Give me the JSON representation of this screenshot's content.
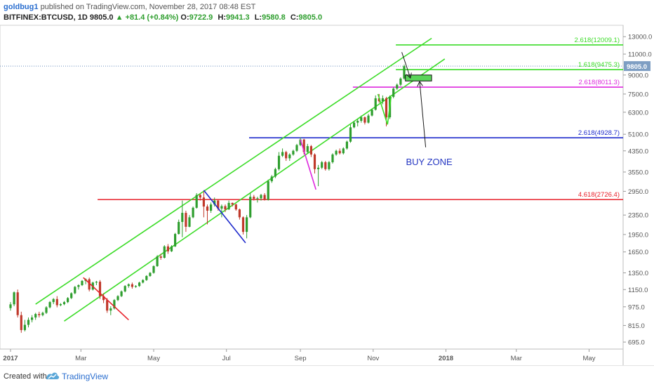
{
  "header": {
    "author": "goldbug1",
    "published": "published on TradingView.com, November 28, 2017 08:48 EST",
    "symbol": "BITFINEX:BTCUSD, 1D",
    "last": "9805.0",
    "change": "+81.4 (+0.84%)",
    "open_label": "O:",
    "open": "9722.9",
    "high_label": "H:",
    "high": "9941.3",
    "low_label": "L:",
    "low": "9580.8",
    "close_label": "C:",
    "close": "9805.0"
  },
  "footer": {
    "created": "Created with",
    "brand": "TradingView"
  },
  "colors": {
    "up": "#2e9e2e",
    "down": "#c0392b",
    "channel": "#3cdc28",
    "red_level": "#e8202a",
    "blue_level": "#1f2bcc",
    "magenta_level": "#dd28dd",
    "green_level": "#3cdc28",
    "buy_box": "#5ad45a",
    "annotation": "#1a1a1a",
    "buy_text": "#2436c2"
  },
  "chart_data": {
    "type": "candlestick",
    "y_scale": "log",
    "ylim": [
      650,
      14500
    ],
    "y_ticks": [
      "13000.0",
      "11000.0",
      "9000.0",
      "7500.0",
      "6300.0",
      "5100.0",
      "4350.0",
      "3550.0",
      "2950.0",
      "2350.0",
      "1950.0",
      "1650.0",
      "1350.0",
      "1150.0",
      "975.0",
      "815.0",
      "695.0"
    ],
    "x_ticks": [
      "2017",
      "Mar",
      "May",
      "Jul",
      "Sep",
      "Nov",
      "2018",
      "Mar",
      "May"
    ],
    "price_tag": "9805.0",
    "levels": [
      {
        "label": "2.618(12009.1)",
        "value": 12009.1,
        "color": "green_level",
        "x_start": "2017-11-20"
      },
      {
        "label": "1.618(9475.3)",
        "value": 9475.3,
        "color": "green_level",
        "x_start": "2017-11-20"
      },
      {
        "label": "2.618(8011.3)",
        "value": 8011.3,
        "color": "magenta_level",
        "x_start": "2017-10-15"
      },
      {
        "label": "2.618(4928.7)",
        "value": 4928.7,
        "color": "blue_level",
        "x_start": "2017-07-20"
      },
      {
        "label": "4.618(2726.4)",
        "value": 2726.4,
        "color": "red_level",
        "x_start": "2017-03-15"
      }
    ],
    "buy_zone": {
      "label": "BUY ZONE",
      "date_from": "2017-11-28",
      "date_to": "2017-12-20",
      "y_low": 8500,
      "y_high": 9000
    },
    "channel_lines": [
      {
        "from": [
          "2017-02-15",
          850
        ],
        "to": [
          "2017-12-31",
          10500
        ]
      },
      {
        "from": [
          "2017-01-22",
          1000
        ],
        "to": [
          "2017-12-20",
          12800
        ]
      }
    ],
    "ohlc": [
      [
        "2017-01-01",
        963,
        1020,
        940,
        998
      ],
      [
        "2017-01-04",
        998,
        1130,
        980,
        1120
      ],
      [
        "2017-01-07",
        1120,
        1150,
        880,
        900
      ],
      [
        "2017-01-10",
        900,
        930,
        760,
        780
      ],
      [
        "2017-01-13",
        780,
        860,
        770,
        820
      ],
      [
        "2017-01-16",
        820,
        880,
        800,
        860
      ],
      [
        "2017-01-19",
        860,
        900,
        840,
        880
      ],
      [
        "2017-01-22",
        880,
        920,
        860,
        910
      ],
      [
        "2017-01-25",
        910,
        930,
        880,
        900
      ],
      [
        "2017-01-28",
        900,
        930,
        890,
        920
      ],
      [
        "2017-01-31",
        920,
        980,
        910,
        970
      ],
      [
        "2017-02-03",
        970,
        1030,
        960,
        1020
      ],
      [
        "2017-02-06",
        1020,
        1060,
        1000,
        1050
      ],
      [
        "2017-02-09",
        1050,
        1080,
        970,
        990
      ],
      [
        "2017-02-12",
        990,
        1010,
        980,
        1000
      ],
      [
        "2017-02-15",
        1000,
        1030,
        990,
        1020
      ],
      [
        "2017-02-18",
        1020,
        1070,
        1010,
        1060
      ],
      [
        "2017-02-21",
        1060,
        1120,
        1050,
        1110
      ],
      [
        "2017-02-24",
        1110,
        1190,
        1100,
        1180
      ],
      [
        "2017-02-27",
        1180,
        1210,
        1150,
        1200
      ],
      [
        "2017-03-02",
        1200,
        1260,
        1190,
        1250
      ],
      [
        "2017-03-05",
        1250,
        1280,
        1210,
        1270
      ],
      [
        "2017-03-08",
        1270,
        1290,
        1130,
        1150
      ],
      [
        "2017-03-11",
        1150,
        1240,
        1140,
        1230
      ],
      [
        "2017-03-14",
        1230,
        1250,
        1200,
        1240
      ],
      [
        "2017-03-17",
        1240,
        1260,
        1050,
        1080
      ],
      [
        "2017-03-20",
        1080,
        1110,
        1010,
        1040
      ],
      [
        "2017-03-23",
        1040,
        1060,
        920,
        940
      ],
      [
        "2017-03-26",
        940,
        980,
        900,
        960
      ],
      [
        "2017-03-29",
        960,
        1050,
        950,
        1040
      ],
      [
        "2017-04-01",
        1040,
        1090,
        1030,
        1080
      ],
      [
        "2017-04-04",
        1080,
        1140,
        1070,
        1130
      ],
      [
        "2017-04-07",
        1130,
        1200,
        1120,
        1190
      ],
      [
        "2017-04-10",
        1190,
        1220,
        1170,
        1210
      ],
      [
        "2017-04-13",
        1210,
        1230,
        1160,
        1180
      ],
      [
        "2017-04-16",
        1180,
        1200,
        1170,
        1190
      ],
      [
        "2017-04-19",
        1190,
        1240,
        1180,
        1230
      ],
      [
        "2017-04-22",
        1230,
        1270,
        1220,
        1260
      ],
      [
        "2017-04-25",
        1260,
        1320,
        1250,
        1310
      ],
      [
        "2017-04-28",
        1310,
        1360,
        1300,
        1350
      ],
      [
        "2017-05-01",
        1350,
        1450,
        1340,
        1440
      ],
      [
        "2017-05-04",
        1440,
        1600,
        1430,
        1580
      ],
      [
        "2017-05-07",
        1580,
        1620,
        1530,
        1560
      ],
      [
        "2017-05-10",
        1560,
        1760,
        1550,
        1740
      ],
      [
        "2017-05-13",
        1740,
        1780,
        1620,
        1660
      ],
      [
        "2017-05-16",
        1660,
        1760,
        1650,
        1740
      ],
      [
        "2017-05-19",
        1740,
        1980,
        1730,
        1960
      ],
      [
        "2017-05-22",
        1960,
        2250,
        1950,
        2200
      ],
      [
        "2017-05-25",
        2200,
        2700,
        1900,
        2400
      ],
      [
        "2017-05-28",
        2400,
        2450,
        2000,
        2100
      ],
      [
        "2017-05-31",
        2100,
        2350,
        2090,
        2300
      ],
      [
        "2017-06-03",
        2300,
        2550,
        2280,
        2520
      ],
      [
        "2017-06-06",
        2520,
        2900,
        2500,
        2850
      ],
      [
        "2017-06-09",
        2850,
        2880,
        2700,
        2780
      ],
      [
        "2017-06-12",
        2780,
        2950,
        2300,
        2550
      ],
      [
        "2017-06-15",
        2550,
        2600,
        2150,
        2450
      ],
      [
        "2017-06-18",
        2450,
        2650,
        2400,
        2600
      ],
      [
        "2017-06-21",
        2600,
        2780,
        2550,
        2700
      ],
      [
        "2017-06-24",
        2700,
        2720,
        2450,
        2500
      ],
      [
        "2017-06-27",
        2500,
        2600,
        2300,
        2560
      ],
      [
        "2017-06-30",
        2560,
        2600,
        2420,
        2480
      ],
      [
        "2017-07-03",
        2480,
        2700,
        2470,
        2640
      ],
      [
        "2017-07-06",
        2640,
        2650,
        2550,
        2600
      ],
      [
        "2017-07-09",
        2600,
        2620,
        2450,
        2480
      ],
      [
        "2017-07-12",
        2480,
        2500,
        2250,
        2300
      ],
      [
        "2017-07-15",
        2300,
        2320,
        1950,
        2000
      ],
      [
        "2017-07-18",
        2000,
        2350,
        1880,
        2300
      ],
      [
        "2017-07-21",
        2300,
        2900,
        2280,
        2800
      ],
      [
        "2017-07-24",
        2800,
        2850,
        2700,
        2750
      ],
      [
        "2017-07-27",
        2750,
        2800,
        2650,
        2760
      ],
      [
        "2017-07-30",
        2760,
        2880,
        2700,
        2850
      ],
      [
        "2017-08-02",
        2850,
        2900,
        2700,
        2720
      ],
      [
        "2017-08-05",
        2720,
        3300,
        2700,
        3250
      ],
      [
        "2017-08-08",
        3250,
        3450,
        3200,
        3400
      ],
      [
        "2017-08-11",
        3400,
        3700,
        3350,
        3650
      ],
      [
        "2017-08-14",
        3650,
        4300,
        3600,
        4150
      ],
      [
        "2017-08-17",
        4150,
        4450,
        4100,
        4300
      ],
      [
        "2017-08-20",
        4300,
        4350,
        3950,
        4050
      ],
      [
        "2017-08-23",
        4050,
        4250,
        3950,
        4200
      ],
      [
        "2017-08-26",
        4200,
        4400,
        4150,
        4350
      ],
      [
        "2017-08-29",
        4350,
        4650,
        4300,
        4600
      ],
      [
        "2017-09-01",
        4600,
        4950,
        4550,
        4850
      ],
      [
        "2017-09-04",
        4850,
        4880,
        4200,
        4300
      ],
      [
        "2017-09-07",
        4300,
        4650,
        4250,
        4550
      ],
      [
        "2017-09-10",
        4550,
        4600,
        4100,
        4200
      ],
      [
        "2017-09-13",
        4200,
        4250,
        3500,
        3650
      ],
      [
        "2017-09-16",
        3650,
        3800,
        3100,
        3700
      ],
      [
        "2017-09-19",
        3700,
        3950,
        3650,
        3900
      ],
      [
        "2017-09-22",
        3900,
        3950,
        3600,
        3650
      ],
      [
        "2017-09-25",
        3650,
        3950,
        3600,
        3900
      ],
      [
        "2017-09-28",
        3900,
        4250,
        3850,
        4200
      ],
      [
        "2017-10-01",
        4200,
        4400,
        4150,
        4350
      ],
      [
        "2017-10-04",
        4350,
        4450,
        4200,
        4250
      ],
      [
        "2017-10-07",
        4250,
        4500,
        4200,
        4450
      ],
      [
        "2017-10-10",
        4450,
        4800,
        4400,
        4750
      ],
      [
        "2017-10-13",
        4750,
        5600,
        4700,
        5450
      ],
      [
        "2017-10-16",
        5450,
        5800,
        5400,
        5700
      ],
      [
        "2017-10-19",
        5700,
        5900,
        5500,
        5800
      ],
      [
        "2017-10-22",
        5800,
        6100,
        5700,
        6000
      ],
      [
        "2017-10-25",
        6000,
        6050,
        5600,
        5700
      ],
      [
        "2017-10-28",
        5700,
        6200,
        5650,
        6100
      ],
      [
        "2017-10-31",
        6100,
        6500,
        6050,
        6450
      ],
      [
        "2017-11-03",
        6450,
        7400,
        6400,
        7200
      ],
      [
        "2017-11-06",
        7200,
        7500,
        6900,
        7000
      ],
      [
        "2017-11-09",
        7000,
        7400,
        6800,
        7200
      ],
      [
        "2017-11-12",
        7200,
        7300,
        5500,
        6000
      ],
      [
        "2017-11-15",
        6000,
        7400,
        5900,
        7300
      ],
      [
        "2017-11-18",
        7300,
        8000,
        7200,
        7900
      ],
      [
        "2017-11-21",
        7900,
        8300,
        7800,
        8200
      ],
      [
        "2017-11-24",
        8200,
        8800,
        8100,
        8700
      ],
      [
        "2017-11-27",
        8700,
        9941.3,
        8600,
        9805
      ]
    ]
  }
}
